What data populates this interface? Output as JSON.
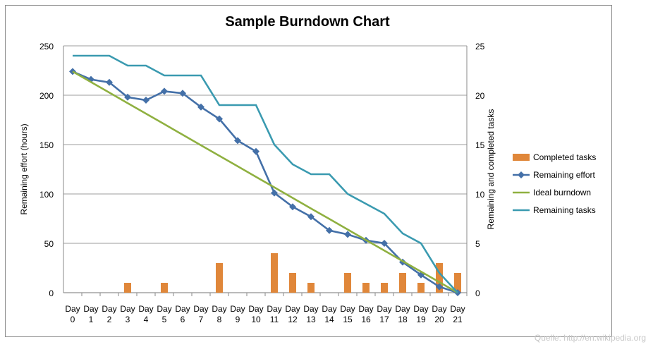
{
  "chart_data": {
    "type": "bar+line",
    "title": "Sample Burndown Chart",
    "ylabel": "Remaining effort (hours)",
    "y2label": "Remaining and completed tasks",
    "ylim": [
      0,
      250
    ],
    "y2lim": [
      0,
      25
    ],
    "yticks": [
      0,
      50,
      100,
      150,
      200,
      250
    ],
    "y2ticks": [
      0,
      5,
      10,
      15,
      20,
      25
    ],
    "grid": true,
    "legend_placement": "right",
    "categories": [
      "Day 0",
      "Day 1",
      "Day 2",
      "Day 3",
      "Day 4",
      "Day 5",
      "Day 6",
      "Day 7",
      "Day 8",
      "Day 9",
      "Day 10",
      "Day 11",
      "Day 12",
      "Day 13",
      "Day 14",
      "Day 15",
      "Day 16",
      "Day 17",
      "Day 18",
      "Day 19",
      "Day 20",
      "Day 21"
    ],
    "series": [
      {
        "name": "Completed tasks",
        "type": "bar",
        "axis": "right",
        "color": "#e0873a",
        "values": [
          0,
          0,
          0,
          1,
          0,
          1,
          0,
          0,
          3,
          0,
          0,
          4,
          2,
          1,
          0,
          2,
          1,
          1,
          2,
          1,
          3,
          2
        ]
      },
      {
        "name": "Remaining effort",
        "type": "line",
        "marker": "diamond",
        "axis": "left",
        "color": "#4470a8",
        "values": [
          224,
          216,
          213,
          198,
          195,
          204,
          202,
          188,
          176,
          154,
          143,
          101,
          87,
          77,
          63,
          59,
          53,
          50,
          31,
          18,
          6,
          0
        ]
      },
      {
        "name": "Ideal burndown",
        "type": "line",
        "axis": "left",
        "color": "#8fb040",
        "values": [
          224,
          213.3,
          202.7,
          192,
          181.3,
          170.7,
          160,
          149.3,
          138.7,
          128,
          117.3,
          106.7,
          96,
          85.3,
          74.7,
          64,
          53.3,
          42.7,
          32,
          21.3,
          10.7,
          0
        ]
      },
      {
        "name": "Remaining tasks",
        "type": "line",
        "axis": "right",
        "color": "#3a9ab0",
        "values": [
          24,
          24,
          24,
          23,
          23,
          22,
          22,
          22,
          19,
          19,
          19,
          15,
          13,
          12,
          12,
          10,
          9,
          8,
          6,
          5,
          2,
          0
        ]
      }
    ]
  },
  "watermark": "Quelle: http://en.wikipedia.org"
}
